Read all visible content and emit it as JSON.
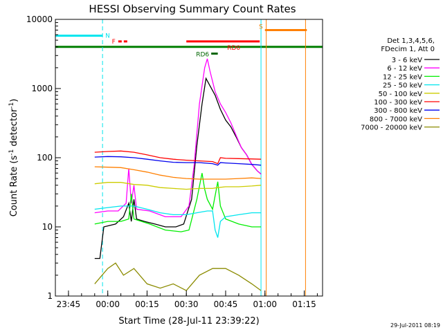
{
  "chart_data": {
    "type": "line",
    "title": "HESSI Observing Summary Count Rates",
    "xlabel": "Start Time (28-Jul-11 23:39:22)",
    "ylabel_main": "Count Rate (s",
    "ylabel_sup1": "-1",
    "ylabel_mid": " detector",
    "ylabel_sup2": "-1",
    "ylabel_end": ")",
    "yscale": "log",
    "ylim": [
      1,
      10000
    ],
    "xlim_minutes": [
      -20,
      82
    ],
    "x_ticks": [
      {
        "t": -15,
        "label": "23:45"
      },
      {
        "t": 0,
        "label": "00:00"
      },
      {
        "t": 15,
        "label": "00:15"
      },
      {
        "t": 30,
        "label": "00:30"
      },
      {
        "t": 45,
        "label": "00:45"
      },
      {
        "t": 60,
        "label": "01:00"
      },
      {
        "t": 75,
        "label": "01:15"
      }
    ],
    "y_ticks": [
      {
        "v": 1,
        "label": "1"
      },
      {
        "v": 10,
        "label": "10"
      },
      {
        "v": 100,
        "label": "100"
      },
      {
        "v": 1000,
        "label": "1000"
      },
      {
        "v": 10000,
        "label": "10000"
      }
    ],
    "legend_header": [
      "Det 1,3,4,5,6,",
      "FDecim 1, Att 0"
    ],
    "series": [
      {
        "name": "3 - 6 keV",
        "color": "#000000",
        "points": [
          [
            -5,
            3.5
          ],
          [
            -3,
            3.5
          ],
          [
            -1.5,
            10
          ],
          [
            3,
            11
          ],
          [
            6,
            14
          ],
          [
            8,
            22
          ],
          [
            9,
            12
          ],
          [
            10,
            25
          ],
          [
            11,
            13
          ],
          [
            14,
            12
          ],
          [
            18,
            11
          ],
          [
            22,
            10
          ],
          [
            26,
            10
          ],
          [
            29,
            11
          ],
          [
            32,
            25
          ],
          [
            34,
            150
          ],
          [
            36,
            600
          ],
          [
            37.5,
            1400
          ],
          [
            39,
            1100
          ],
          [
            41,
            800
          ],
          [
            43,
            500
          ],
          [
            45,
            350
          ],
          [
            47,
            280
          ],
          [
            49,
            200
          ],
          [
            51,
            140
          ],
          [
            53,
            110
          ],
          [
            55,
            80
          ],
          [
            57,
            65
          ],
          [
            58.5,
            58
          ]
        ]
      },
      {
        "name": "6 - 12 keV",
        "color": "#ff00ff",
        "points": [
          [
            -5,
            16
          ],
          [
            0,
            17
          ],
          [
            4,
            17
          ],
          [
            7,
            22
          ],
          [
            8,
            70
          ],
          [
            9,
            22
          ],
          [
            10,
            40
          ],
          [
            11,
            18
          ],
          [
            16,
            17
          ],
          [
            22,
            14
          ],
          [
            28,
            14
          ],
          [
            31,
            20
          ],
          [
            33,
            80
          ],
          [
            35,
            600
          ],
          [
            37,
            2000
          ],
          [
            38,
            2700
          ],
          [
            39,
            1800
          ],
          [
            41,
            900
          ],
          [
            43,
            600
          ],
          [
            45,
            450
          ],
          [
            47,
            320
          ],
          [
            49,
            210
          ],
          [
            51,
            140
          ],
          [
            53,
            110
          ],
          [
            55,
            80
          ],
          [
            57,
            65
          ],
          [
            58.5,
            58
          ]
        ]
      },
      {
        "name": "12 - 25 keV",
        "color": "#00ee00",
        "points": [
          [
            -5,
            11
          ],
          [
            0,
            12
          ],
          [
            5,
            12
          ],
          [
            8,
            13
          ],
          [
            9,
            30
          ],
          [
            10,
            13
          ],
          [
            16,
            11
          ],
          [
            22,
            9
          ],
          [
            28,
            8.5
          ],
          [
            31,
            9
          ],
          [
            34,
            25
          ],
          [
            36,
            60
          ],
          [
            37,
            35
          ],
          [
            38,
            25
          ],
          [
            40,
            18
          ],
          [
            42,
            45
          ],
          [
            43,
            20
          ],
          [
            45,
            13
          ],
          [
            50,
            11
          ],
          [
            55,
            10
          ],
          [
            58.5,
            10
          ]
        ]
      },
      {
        "name": "25 - 50 keV",
        "color": "#00e5ee",
        "points": [
          [
            -5,
            18
          ],
          [
            0,
            19
          ],
          [
            5,
            20
          ],
          [
            10,
            20
          ],
          [
            15,
            18
          ],
          [
            20,
            16
          ],
          [
            25,
            15
          ],
          [
            30,
            15
          ],
          [
            34,
            16
          ],
          [
            38,
            17
          ],
          [
            40,
            17
          ],
          [
            41,
            9
          ],
          [
            42,
            7
          ],
          [
            43,
            12
          ],
          [
            45,
            14
          ],
          [
            50,
            15
          ],
          [
            55,
            16
          ],
          [
            58.5,
            16
          ]
        ]
      },
      {
        "name": "50 - 100 keV",
        "color": "#cccc00",
        "points": [
          [
            -5,
            42
          ],
          [
            0,
            44
          ],
          [
            5,
            44
          ],
          [
            10,
            41
          ],
          [
            15,
            40
          ],
          [
            20,
            37
          ],
          [
            25,
            36
          ],
          [
            30,
            35
          ],
          [
            35,
            36
          ],
          [
            40,
            36
          ],
          [
            42,
            37
          ],
          [
            45,
            38
          ],
          [
            50,
            38
          ],
          [
            55,
            39
          ],
          [
            58.5,
            40
          ]
        ]
      },
      {
        "name": "100 - 300 keV",
        "color": "#ff0000",
        "points": [
          [
            -5,
            120
          ],
          [
            0,
            123
          ],
          [
            5,
            125
          ],
          [
            10,
            120
          ],
          [
            15,
            110
          ],
          [
            20,
            100
          ],
          [
            25,
            95
          ],
          [
            30,
            92
          ],
          [
            35,
            90
          ],
          [
            40,
            88
          ],
          [
            42,
            82
          ],
          [
            43,
            100
          ],
          [
            45,
            98
          ],
          [
            50,
            97
          ],
          [
            55,
            96
          ],
          [
            58.5,
            95
          ]
        ]
      },
      {
        "name": "300 - 800 keV",
        "color": "#0000ee",
        "points": [
          [
            -5,
            102
          ],
          [
            0,
            104
          ],
          [
            5,
            103
          ],
          [
            10,
            100
          ],
          [
            15,
            95
          ],
          [
            20,
            90
          ],
          [
            25,
            86
          ],
          [
            30,
            85
          ],
          [
            35,
            85
          ],
          [
            40,
            82
          ],
          [
            42,
            78
          ],
          [
            43,
            85
          ],
          [
            45,
            84
          ],
          [
            50,
            82
          ],
          [
            55,
            80
          ],
          [
            58.5,
            78
          ]
        ]
      },
      {
        "name": "800 - 7000 keV",
        "color": "#ff7f00",
        "points": [
          [
            -5,
            74
          ],
          [
            0,
            73
          ],
          [
            5,
            72
          ],
          [
            10,
            67
          ],
          [
            15,
            62
          ],
          [
            20,
            56
          ],
          [
            25,
            52
          ],
          [
            30,
            50
          ],
          [
            35,
            49
          ],
          [
            40,
            49
          ],
          [
            45,
            49
          ],
          [
            50,
            50
          ],
          [
            55,
            51
          ],
          [
            58.5,
            50
          ]
        ]
      },
      {
        "name": "7000 - 20000 keV",
        "color": "#8b8b00",
        "points": [
          [
            -5,
            1.5
          ],
          [
            0,
            2.5
          ],
          [
            3,
            3
          ],
          [
            6,
            2
          ],
          [
            10,
            2.5
          ],
          [
            15,
            1.5
          ],
          [
            20,
            1.3
          ],
          [
            25,
            1.5
          ],
          [
            30,
            1.2
          ],
          [
            35,
            2
          ],
          [
            40,
            2.5
          ],
          [
            45,
            2.5
          ],
          [
            50,
            2
          ],
          [
            55,
            1.5
          ],
          [
            58.5,
            1.2
          ]
        ]
      }
    ],
    "flags": [
      {
        "label": "N",
        "color": "#00e5ee",
        "t_start": -20,
        "t_end": -2,
        "level": 5800,
        "line_t": -2
      },
      {
        "label": "S",
        "color": "#ff7f00",
        "t_start": 60,
        "t_end": 76,
        "level": 7000
      },
      {
        "label": "F",
        "color": "#ff0000",
        "t_start": 4,
        "t_end": 8,
        "level": 4800
      },
      {
        "label": "RD0",
        "color": "#ff0000",
        "t_start": 30,
        "t_end": 58,
        "level": 4800
      },
      {
        "label": "RD6",
        "color": "#006400",
        "t_start": 39.5,
        "t_end": 42,
        "level": 3200
      }
    ],
    "attenuator_line": {
      "color": "#007f00",
      "level": 4000
    },
    "saa_lines": [
      {
        "t": 58.5,
        "color": "#00e5ee"
      },
      {
        "t": 60.5,
        "color": "#ff7f00"
      },
      {
        "t": 75.5,
        "color": "#ff7f00"
      }
    ],
    "timestamp": "29-Jul-2011 08:19"
  }
}
